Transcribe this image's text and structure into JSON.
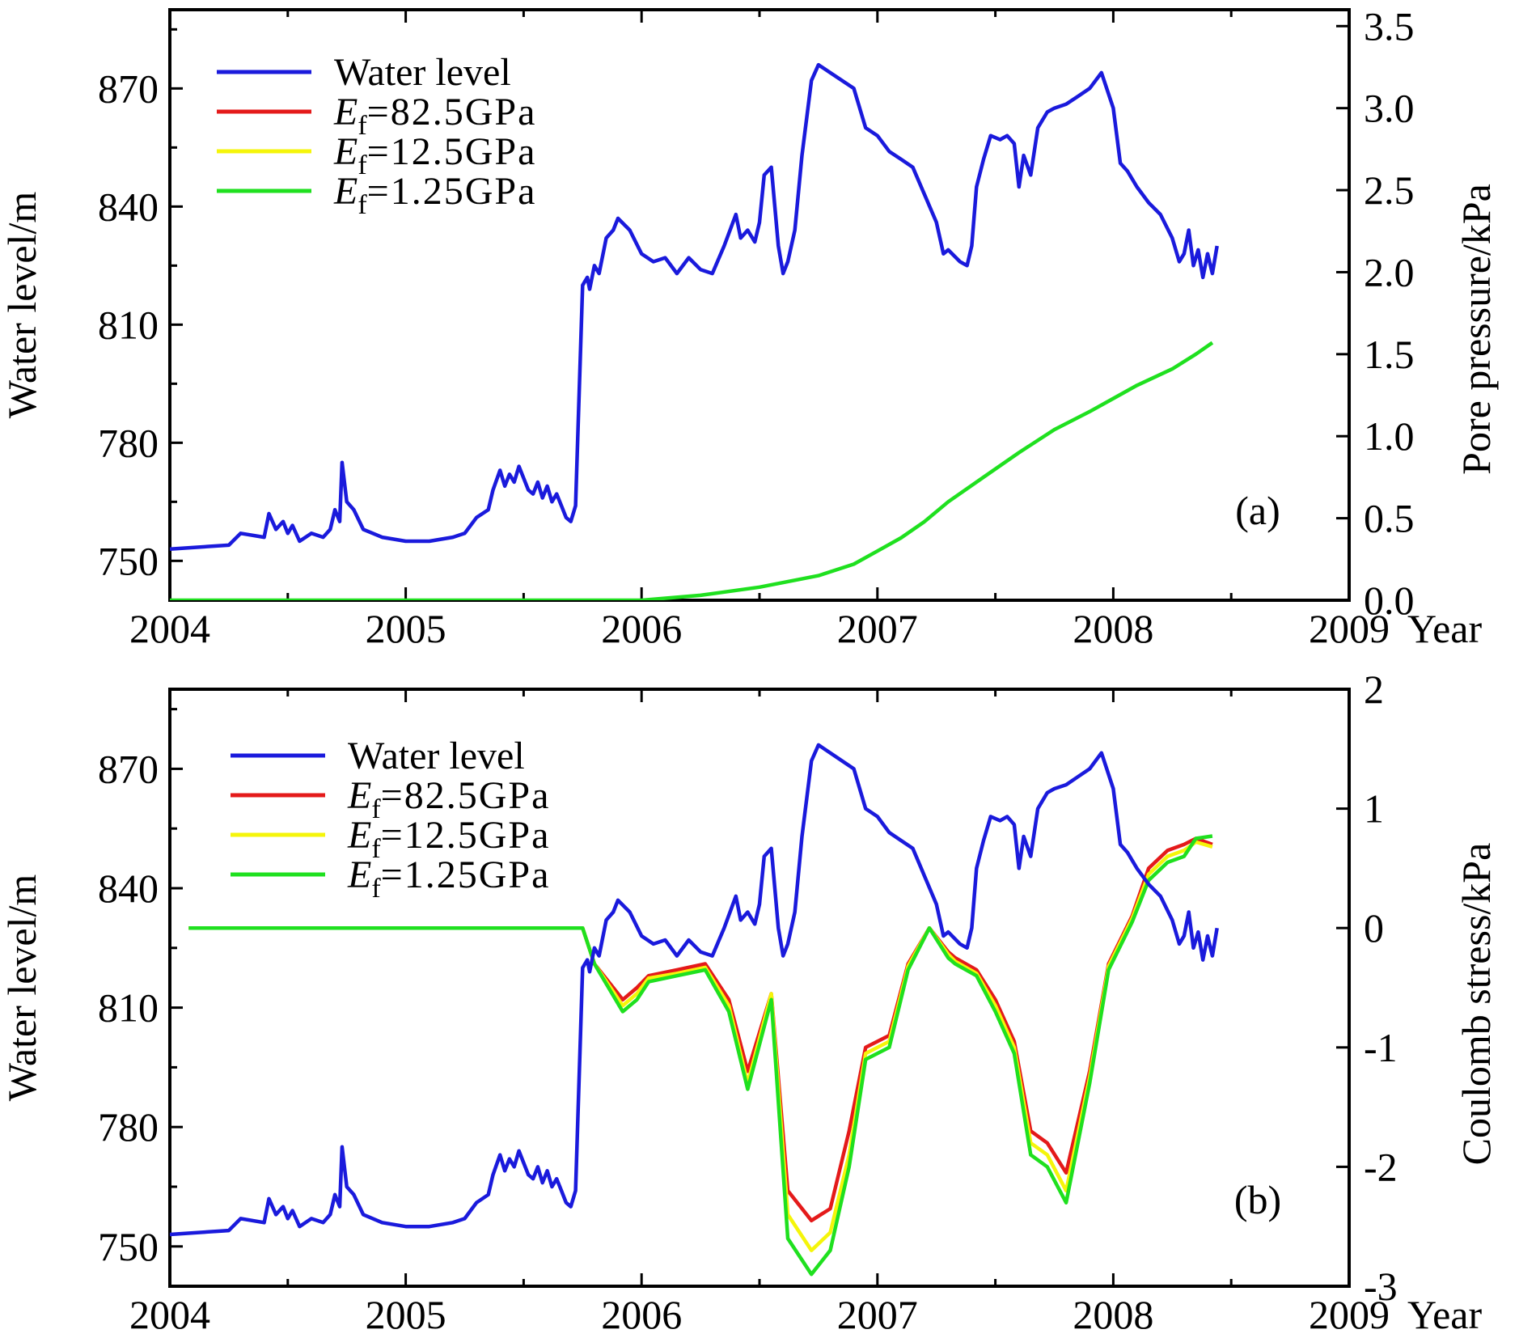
{
  "colors": {
    "water_level": "#1a1adc",
    "ef_82_5": "#e41a1a",
    "ef_12_5": "#f5f50a",
    "ef_1_25": "#1fe01f"
  },
  "chart_data": [
    {
      "panel": "(a)",
      "type": "line",
      "xlabel": "Year",
      "ylabel_left": "Water level/m",
      "ylabel_right": "Pore pressure/kPa",
      "xlim": [
        2004,
        2009
      ],
      "ylim_left": [
        740,
        890
      ],
      "ylim_right": [
        0.0,
        3.6
      ],
      "x_ticks": [
        "2004",
        "2005",
        "2006",
        "2007",
        "2008",
        "2009"
      ],
      "y_ticks_left": [
        "750",
        "780",
        "810",
        "840",
        "870"
      ],
      "y_ticks_right": [
        "0.0",
        "0.5",
        "1.0",
        "1.5",
        "2.0",
        "2.5",
        "3.0",
        "3.5"
      ],
      "legend": {
        "placement": "top-left",
        "entries": [
          {
            "pre": "Water level",
            "sub": "",
            "post": ""
          },
          {
            "pre": "E",
            "sub": "f",
            "post": "=82.5GPa"
          },
          {
            "pre": "E",
            "sub": "f",
            "post": "=12.5GPa"
          },
          {
            "pre": "E",
            "sub": "f",
            "post": "=1.25GPa"
          }
        ]
      },
      "water_level": {
        "x": [
          2004.0,
          2004.25,
          2004.3,
          2004.4,
          2004.42,
          2004.45,
          2004.48,
          2004.5,
          2004.52,
          2004.55,
          2004.6,
          2004.65,
          2004.68,
          2004.7,
          2004.72,
          2004.73,
          2004.75,
          2004.78,
          2004.82,
          2004.9,
          2005.0,
          2005.1,
          2005.2,
          2005.25,
          2005.3,
          2005.35,
          2005.37,
          2005.4,
          2005.42,
          2005.44,
          2005.46,
          2005.48,
          2005.5,
          2005.52,
          2005.54,
          2005.56,
          2005.58,
          2005.6,
          2005.62,
          2005.64,
          2005.66,
          2005.68,
          2005.7,
          2005.72,
          2005.75,
          2005.77,
          2005.78,
          2005.8,
          2005.82,
          2005.85,
          2005.88,
          2005.9,
          2005.95,
          2006.0,
          2006.05,
          2006.1,
          2006.15,
          2006.2,
          2006.25,
          2006.3,
          2006.35,
          2006.4,
          2006.42,
          2006.45,
          2006.48,
          2006.5,
          2006.52,
          2006.55,
          2006.58,
          2006.6,
          2006.62,
          2006.65,
          2006.68,
          2006.72,
          2006.75,
          2006.8,
          2006.9,
          2006.95,
          2007.0,
          2007.05,
          2007.1,
          2007.15,
          2007.2,
          2007.25,
          2007.28,
          2007.3,
          2007.35,
          2007.38,
          2007.4,
          2007.42,
          2007.45,
          2007.48,
          2007.52,
          2007.55,
          2007.58,
          2007.6,
          2007.62,
          2007.65,
          2007.68,
          2007.72,
          2007.75,
          2007.8,
          2007.85,
          2007.9,
          2007.95,
          2008.0,
          2008.03,
          2008.06,
          2008.1,
          2008.15,
          2008.2,
          2008.25,
          2008.28,
          2008.3,
          2008.32,
          2008.34,
          2008.36,
          2008.38,
          2008.4,
          2008.42,
          2008.44
        ],
        "y": [
          753,
          754,
          757,
          756,
          762,
          758,
          760,
          757,
          759,
          755,
          757,
          756,
          758,
          763,
          760,
          775,
          765,
          763,
          758,
          756,
          755,
          755,
          756,
          757,
          761,
          763,
          768,
          773,
          769,
          772,
          770,
          774,
          771,
          768,
          767,
          770,
          766,
          769,
          765,
          767,
          764,
          761,
          760,
          764,
          820,
          822,
          819,
          825,
          823,
          832,
          834,
          837,
          834,
          828,
          826,
          827,
          823,
          827,
          824,
          823,
          830,
          838,
          832,
          834,
          831,
          836,
          848,
          850,
          830,
          823,
          826,
          834,
          853,
          872,
          876,
          874,
          870,
          860,
          858,
          854,
          852,
          850,
          843,
          836,
          828,
          829,
          826,
          825,
          830,
          845,
          852,
          858,
          857,
          858,
          856,
          845,
          853,
          848,
          860,
          864,
          865,
          866,
          868,
          870,
          874,
          865,
          851,
          849,
          845,
          841,
          838,
          832,
          826,
          828,
          834,
          825,
          829,
          822,
          828,
          823,
          830
        ]
      },
      "pore_pressure": {
        "x": [
          2004.0,
          2006.0,
          2006.25,
          2006.5,
          2006.75,
          2006.9,
          2007.0,
          2007.1,
          2007.2,
          2007.3,
          2007.45,
          2007.6,
          2007.75,
          2007.9,
          2008.0,
          2008.1,
          2008.25,
          2008.35,
          2008.42
        ],
        "y": [
          0.0,
          0.0,
          0.03,
          0.08,
          0.15,
          0.22,
          0.3,
          0.38,
          0.48,
          0.6,
          0.75,
          0.9,
          1.04,
          1.15,
          1.23,
          1.31,
          1.41,
          1.5,
          1.57
        ]
      }
    },
    {
      "panel": "(b)",
      "type": "line",
      "xlabel": "Year",
      "ylabel_left": "Water level/m",
      "ylabel_right": "Coulomb stress/kPa",
      "xlim": [
        2004,
        2009
      ],
      "ylim_left": [
        740,
        890
      ],
      "ylim_right": [
        -3,
        2
      ],
      "x_ticks": [
        "2004",
        "2005",
        "2006",
        "2007",
        "2008",
        "2009"
      ],
      "y_ticks_left": [
        "750",
        "780",
        "810",
        "840",
        "870"
      ],
      "y_ticks_right": [
        "-3",
        "-2",
        "-1",
        "0",
        "1",
        "2"
      ],
      "legend": {
        "placement": "top-left",
        "entries": [
          {
            "pre": "Water level",
            "sub": "",
            "post": ""
          },
          {
            "pre": "E",
            "sub": "f",
            "post": "=82.5GPa"
          },
          {
            "pre": "E",
            "sub": "f",
            "post": "=12.5GPa"
          },
          {
            "pre": "E",
            "sub": "f",
            "post": "=1.25GPa"
          }
        ]
      },
      "water_level": {
        "x": [
          2004.0,
          2004.25,
          2004.3,
          2004.4,
          2004.42,
          2004.45,
          2004.48,
          2004.5,
          2004.52,
          2004.55,
          2004.6,
          2004.65,
          2004.68,
          2004.7,
          2004.72,
          2004.73,
          2004.75,
          2004.78,
          2004.82,
          2004.9,
          2005.0,
          2005.1,
          2005.2,
          2005.25,
          2005.3,
          2005.35,
          2005.37,
          2005.4,
          2005.42,
          2005.44,
          2005.46,
          2005.48,
          2005.5,
          2005.52,
          2005.54,
          2005.56,
          2005.58,
          2005.6,
          2005.62,
          2005.64,
          2005.66,
          2005.68,
          2005.7,
          2005.72,
          2005.75,
          2005.77,
          2005.78,
          2005.8,
          2005.82,
          2005.85,
          2005.88,
          2005.9,
          2005.95,
          2006.0,
          2006.05,
          2006.1,
          2006.15,
          2006.2,
          2006.25,
          2006.3,
          2006.35,
          2006.4,
          2006.42,
          2006.45,
          2006.48,
          2006.5,
          2006.52,
          2006.55,
          2006.58,
          2006.6,
          2006.62,
          2006.65,
          2006.68,
          2006.72,
          2006.75,
          2006.8,
          2006.9,
          2006.95,
          2007.0,
          2007.05,
          2007.1,
          2007.15,
          2007.2,
          2007.25,
          2007.28,
          2007.3,
          2007.35,
          2007.38,
          2007.4,
          2007.42,
          2007.45,
          2007.48,
          2007.52,
          2007.55,
          2007.58,
          2007.6,
          2007.62,
          2007.65,
          2007.68,
          2007.72,
          2007.75,
          2007.8,
          2007.85,
          2007.9,
          2007.95,
          2008.0,
          2008.03,
          2008.06,
          2008.1,
          2008.15,
          2008.2,
          2008.25,
          2008.28,
          2008.3,
          2008.32,
          2008.34,
          2008.36,
          2008.38,
          2008.4,
          2008.42,
          2008.44
        ],
        "y": [
          753,
          754,
          757,
          756,
          762,
          758,
          760,
          757,
          759,
          755,
          757,
          756,
          758,
          763,
          760,
          775,
          765,
          763,
          758,
          756,
          755,
          755,
          756,
          757,
          761,
          763,
          768,
          773,
          769,
          772,
          770,
          774,
          771,
          768,
          767,
          770,
          766,
          769,
          765,
          767,
          764,
          761,
          760,
          764,
          820,
          822,
          819,
          825,
          823,
          832,
          834,
          837,
          834,
          828,
          826,
          827,
          823,
          827,
          824,
          823,
          830,
          838,
          832,
          834,
          831,
          836,
          848,
          850,
          830,
          823,
          826,
          834,
          853,
          872,
          876,
          874,
          870,
          860,
          858,
          854,
          852,
          850,
          843,
          836,
          828,
          829,
          826,
          825,
          830,
          845,
          852,
          858,
          857,
          858,
          856,
          845,
          853,
          848,
          860,
          864,
          865,
          866,
          868,
          870,
          874,
          865,
          851,
          849,
          845,
          841,
          838,
          832,
          826,
          828,
          834,
          825,
          829,
          822,
          828,
          823,
          830
        ]
      },
      "coulomb": {
        "x": [
          2004.08,
          2005.0,
          2005.5,
          2005.75,
          2005.8,
          2005.92,
          2005.98,
          2006.03,
          2006.15,
          2006.27,
          2006.37,
          2006.45,
          2006.55,
          2006.62,
          2006.72,
          2006.8,
          2006.88,
          2006.95,
          2007.05,
          2007.13,
          2007.22,
          2007.3,
          2007.33,
          2007.42,
          2007.5,
          2007.58,
          2007.65,
          2007.72,
          2007.8,
          2007.9,
          2007.98,
          2008.08,
          2008.15,
          2008.23,
          2008.3,
          2008.35,
          2008.42
        ],
        "series": [
          {
            "key": "ef_82_5",
            "y": [
              0,
              0,
              0,
              0,
              -0.3,
              -0.6,
              -0.5,
              -0.4,
              -0.35,
              -0.3,
              -0.6,
              -1.2,
              -0.55,
              -2.2,
              -2.45,
              -2.35,
              -1.7,
              -1.0,
              -0.9,
              -0.3,
              0,
              -0.2,
              -0.25,
              -0.35,
              -0.6,
              -0.95,
              -1.7,
              -1.8,
              -2.05,
              -1.2,
              -0.3,
              0.1,
              0.5,
              0.65,
              0.7,
              0.75,
              0.7
            ]
          },
          {
            "key": "ef_12_5",
            "y": [
              0,
              0,
              0,
              0,
              -0.3,
              -0.65,
              -0.55,
              -0.42,
              -0.38,
              -0.33,
              -0.65,
              -1.3,
              -0.55,
              -2.4,
              -2.7,
              -2.55,
              -1.9,
              -1.05,
              -0.95,
              -0.32,
              0,
              -0.22,
              -0.28,
              -0.38,
              -0.65,
              -1.0,
              -1.8,
              -1.9,
              -2.2,
              -1.25,
              -0.32,
              0.08,
              0.45,
              0.6,
              0.65,
              0.72,
              0.68
            ]
          },
          {
            "key": "ef_1_25",
            "y": [
              0,
              0,
              0,
              0,
              -0.3,
              -0.7,
              -0.6,
              -0.45,
              -0.4,
              -0.35,
              -0.7,
              -1.35,
              -0.6,
              -2.6,
              -2.9,
              -2.7,
              -2.0,
              -1.1,
              -1.0,
              -0.35,
              0,
              -0.25,
              -0.3,
              -0.4,
              -0.7,
              -1.05,
              -1.9,
              -2.0,
              -2.3,
              -1.3,
              -0.35,
              0.05,
              0.4,
              0.55,
              0.6,
              0.75,
              0.77
            ]
          }
        ]
      }
    }
  ]
}
